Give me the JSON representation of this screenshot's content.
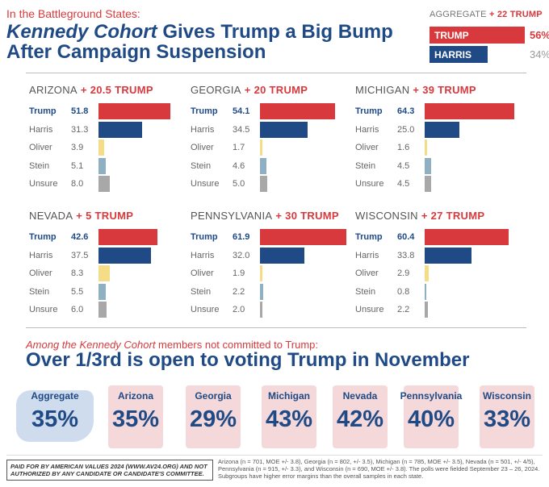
{
  "header": {
    "kicker": "In the Battleground States:",
    "headline_em": "Kennedy Cohort",
    "headline_rest": " Gives Trump a Big Bump After Campaign Suspension"
  },
  "aggregate": {
    "label": "AGGREGATE",
    "lead": "+ 22 TRUMP",
    "trump_label": "TRUMP",
    "trump_value": "56%",
    "harris_label": "HARRIS",
    "harris_value": "34%"
  },
  "colors": {
    "trump": "#d8393d",
    "harris": "#1f4a86",
    "oliver": "#f5dc86",
    "stein": "#8fb0c2",
    "unsure": "#a8a8a8"
  },
  "chart_data": {
    "type": "bar",
    "categories": [
      "Trump",
      "Harris",
      "Oliver",
      "Stein",
      "Unsure"
    ],
    "states": [
      {
        "name": "ARIZONA",
        "lead": "+ 20.5 TRUMP",
        "values": [
          51.8,
          31.3,
          3.9,
          5.1,
          8.0
        ],
        "labels": [
          "51.8",
          "31.3",
          "3.9",
          "5.1",
          "8.0"
        ]
      },
      {
        "name": "GEORGIA",
        "lead": "+ 20 TRUMP",
        "values": [
          54.1,
          34.5,
          1.7,
          4.6,
          5.0
        ],
        "labels": [
          "54.1",
          "34.5",
          "1.7",
          "4.6",
          "5.0"
        ]
      },
      {
        "name": "MICHIGAN",
        "lead": "+ 39 TRUMP",
        "values": [
          64.3,
          25.0,
          1.6,
          4.5,
          4.5
        ],
        "labels": [
          "64.3",
          "25.0",
          "1.6",
          "4.5",
          "4.5"
        ]
      },
      {
        "name": "NEVADA",
        "lead": "+ 5 TRUMP",
        "values": [
          42.6,
          37.5,
          8.3,
          5.5,
          6.0
        ],
        "labels": [
          "42.6",
          "37.5",
          "8.3",
          "5.5",
          "6.0"
        ]
      },
      {
        "name": "PENNSYLVANIA",
        "lead": "+ 30 TRUMP",
        "values": [
          61.9,
          32.0,
          1.9,
          2.2,
          2.0
        ],
        "labels": [
          "61.9",
          "32.0",
          "1.9",
          "2.2",
          "2.0"
        ]
      },
      {
        "name": "WISCONSIN",
        "lead": "+ 27 TRUMP",
        "values": [
          60.4,
          33.8,
          2.9,
          0.8,
          2.2
        ],
        "labels": [
          "60.4",
          "33.8",
          "2.9",
          "0.8",
          "2.2"
        ]
      }
    ],
    "aggregate": {
      "Trump": 56,
      "Harris": 34
    }
  },
  "section2": {
    "sub_em": "Among the Kennedy Cohort",
    "sub_rest": " members not committed to Trump:",
    "headline": "Over 1/3rd is open to voting Trump in November",
    "open_shares": [
      {
        "name": "Aggregate",
        "value": "35%"
      },
      {
        "name": "Arizona",
        "value": "35%"
      },
      {
        "name": "Georgia",
        "value": "29%"
      },
      {
        "name": "Michigan",
        "value": "43%"
      },
      {
        "name": "Nevada",
        "value": "42%"
      },
      {
        "name": "Pennsylvania",
        "value": "40%"
      },
      {
        "name": "Wisconsin",
        "value": "33%"
      }
    ]
  },
  "footer": {
    "paid_for": "PAID FOR BY AMERICAN VALUES 2024 (WWW.AV24.ORG) AND NOT AUTHORIZED BY ANY CANDIDATE OR CANDIDATE'S COMMITTEE.",
    "methodology": "Arizona (n = 701, MOE +/- 3.8), Georgia (n = 802, +/- 3.5), Michigan (n = 785, MOE +/- 3.5), Nevada (n = 501, +/- 4/5), Pennsylvania (n = 915, +/- 3.3), and Wisconsin (n = 690, MOE +/- 3.8). The polls were fielded September 23 – 26, 2024. Subgroups have higher error margins than the overall samples in each state."
  }
}
